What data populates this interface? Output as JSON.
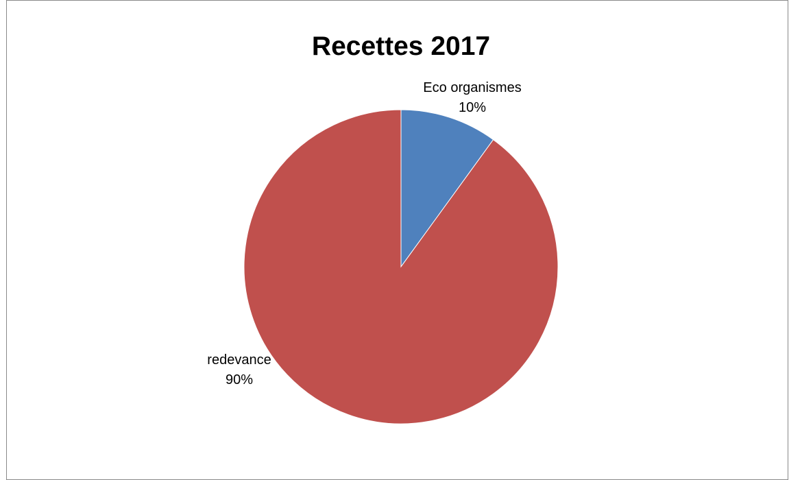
{
  "chart_data": {
    "type": "pie",
    "title": "Recettes 2017",
    "categories": [
      "Eco organismes",
      "redevance"
    ],
    "values": [
      10,
      90
    ],
    "labels": [
      {
        "name": "Eco organismes",
        "percent": "10%"
      },
      {
        "name": "redevance",
        "percent": "90%"
      }
    ],
    "colors": [
      "#4f81bd",
      "#c0504d"
    ],
    "start_angle": "12 o'clock",
    "direction": "clockwise",
    "legend": "none"
  }
}
